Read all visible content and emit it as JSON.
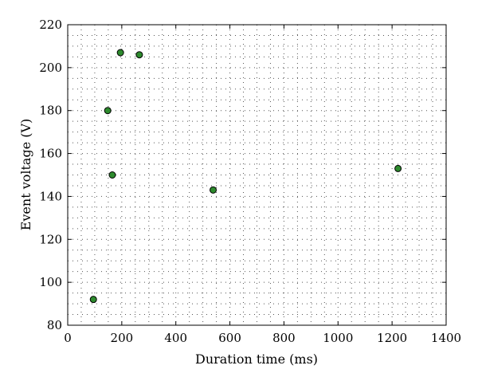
{
  "chart_data": {
    "type": "scatter",
    "title": "",
    "xlabel": "Duration time (ms)",
    "ylabel": "Event voltage (V)",
    "xlim": [
      0,
      1400
    ],
    "ylim": [
      80,
      220
    ],
    "xticks": [
      0,
      200,
      400,
      600,
      800,
      1000,
      1200,
      1400
    ],
    "yticks": [
      80,
      100,
      120,
      140,
      160,
      180,
      200,
      220
    ],
    "grid": true,
    "legend": "none",
    "marker_color": "#2e8b2e",
    "marker_edge_color": "#000000",
    "points": [
      {
        "x": 95,
        "y": 92
      },
      {
        "x": 148,
        "y": 180
      },
      {
        "x": 165,
        "y": 150
      },
      {
        "x": 195,
        "y": 207
      },
      {
        "x": 265,
        "y": 206
      },
      {
        "x": 538,
        "y": 143
      },
      {
        "x": 1222,
        "y": 153
      }
    ]
  }
}
